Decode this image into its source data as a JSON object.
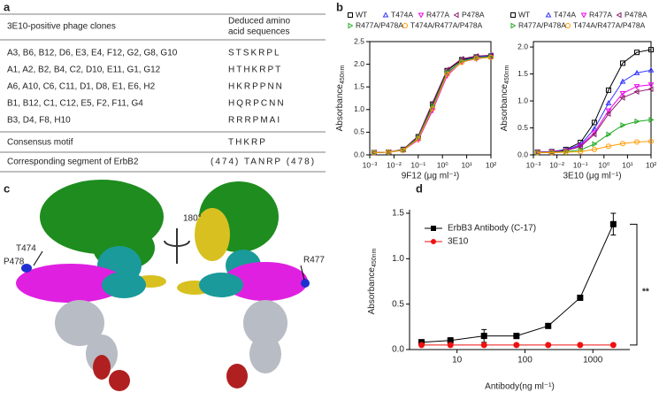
{
  "panel_labels": [
    "a",
    "b",
    "c",
    "d"
  ],
  "table": {
    "header": [
      "3E10-positive phage clones",
      [
        "Deduced amino",
        "acid sequences"
      ]
    ],
    "rows": [
      [
        "A3, B6, B12, D6, E3, E4, F12, G2, G8, G10",
        "STSKRPL"
      ],
      [
        "A1, A2, B2, B4, C2, D10, E11, G1, G12",
        "HTHKRPT"
      ],
      [
        "A6, A10, C6, C11, D1, D8, E1, E6, H2",
        "HKRPPNN"
      ],
      [
        "B1, B12, C1, C12, E5, F2, F11, G4",
        "HQRPCNN"
      ],
      [
        "B3, D4, F8, H10",
        "RRRPMAI"
      ],
      [
        "Consensus motif",
        "THKRP"
      ],
      [
        "Corresponding segment of ErbB2",
        "(474) TANRP (478)"
      ]
    ]
  },
  "structure": {
    "labels": [
      "T474",
      "P478",
      "180°",
      "R477"
    ]
  },
  "chart_data": [
    {
      "type": "line",
      "xscale": "log",
      "xlabel": "9F12 (μg ml⁻¹)",
      "ylabel": "Absorbance",
      "ylabel_sub": "450nm",
      "xlim": [
        0.001,
        100
      ],
      "ylim": [
        0,
        2.5
      ],
      "xticks": [
        {
          "value": 0.001,
          "label": "10⁻³"
        },
        {
          "value": 0.01,
          "label": "10⁻²"
        },
        {
          "value": 0.1,
          "label": "10⁻¹"
        },
        {
          "value": 1,
          "label": "10⁰"
        },
        {
          "value": 10,
          "label": "10¹"
        },
        {
          "value": 100,
          "label": "10²"
        }
      ],
      "yticks": [
        {
          "value": 0,
          "label": "0.0"
        },
        0.5,
        {
          "value": 1,
          "label": "1.0"
        },
        1.5,
        {
          "value": 2,
          "label": "2.0"
        },
        2.5
      ],
      "x": [
        0.0015,
        0.006,
        0.024,
        0.1,
        0.39,
        1.56,
        6.25,
        25,
        100
      ],
      "series": [
        {
          "name": "WT",
          "color": "#000000",
          "marker": "square",
          "values": [
            0.05,
            0.06,
            0.12,
            0.4,
            1.12,
            1.86,
            2.1,
            2.16,
            2.18
          ]
        },
        {
          "name": "T474A",
          "color": "#3333ff",
          "marker": "tri-up",
          "values": [
            0.05,
            0.06,
            0.11,
            0.36,
            1.05,
            1.8,
            2.08,
            2.15,
            2.2
          ]
        },
        {
          "name": "R477A",
          "color": "#ee00ee",
          "marker": "tri-down",
          "values": [
            0.05,
            0.06,
            0.1,
            0.33,
            0.98,
            1.75,
            2.05,
            2.12,
            2.16
          ]
        },
        {
          "name": "P478A",
          "color": "#8b1a6b",
          "marker": "tri-left",
          "values": [
            0.05,
            0.06,
            0.12,
            0.42,
            1.15,
            1.88,
            2.12,
            2.18,
            2.2
          ]
        },
        {
          "name": "R477A/P478A",
          "color": "#22aa22",
          "marker": "tri-right",
          "values": [
            0.05,
            0.06,
            0.11,
            0.38,
            1.08,
            1.82,
            2.07,
            2.14,
            2.17
          ]
        },
        {
          "name": "T474A/R477A/P478A",
          "color": "#ff9900",
          "marker": "circle",
          "values": [
            0.05,
            0.06,
            0.1,
            0.35,
            1.02,
            1.78,
            2.04,
            2.13,
            2.15
          ]
        }
      ]
    },
    {
      "type": "line",
      "xscale": "log",
      "xlabel": "3E10 (μg ml⁻¹)",
      "ylabel": "Absorbance",
      "ylabel_sub": "450nm",
      "xlim": [
        0.001,
        100
      ],
      "ylim": [
        0,
        2.1
      ],
      "xticks": [
        {
          "value": 0.001,
          "label": "10⁻³"
        },
        {
          "value": 0.01,
          "label": "10⁻²"
        },
        {
          "value": 0.1,
          "label": "10⁻¹"
        },
        {
          "value": 1,
          "label": "10⁰"
        },
        {
          "value": 10,
          "label": "10¹"
        },
        {
          "value": 100,
          "label": "10²"
        }
      ],
      "yticks": [
        {
          "value": 0,
          "label": "0.0"
        },
        0.5,
        {
          "value": 1,
          "label": "1.0"
        },
        1.5,
        {
          "value": 2,
          "label": "2.0"
        }
      ],
      "x": [
        0.0015,
        0.006,
        0.024,
        0.1,
        0.39,
        1.56,
        6.25,
        25,
        100
      ],
      "series": [
        {
          "name": "WT",
          "color": "#000000",
          "marker": "square",
          "values": [
            0.05,
            0.06,
            0.1,
            0.23,
            0.6,
            1.2,
            1.7,
            1.9,
            1.95
          ]
        },
        {
          "name": "T474A",
          "color": "#3333ff",
          "marker": "tri-up",
          "values": [
            0.05,
            0.06,
            0.09,
            0.19,
            0.48,
            0.96,
            1.36,
            1.52,
            1.57
          ]
        },
        {
          "name": "R477A",
          "color": "#ee00ee",
          "marker": "tri-down",
          "values": [
            0.05,
            0.06,
            0.08,
            0.17,
            0.41,
            0.82,
            1.14,
            1.27,
            1.3
          ]
        },
        {
          "name": "P478A",
          "color": "#8b1a6b",
          "marker": "tri-left",
          "values": [
            0.05,
            0.05,
            0.08,
            0.15,
            0.38,
            0.76,
            1.06,
            1.17,
            1.22
          ]
        },
        {
          "name": "R477A/P478A",
          "color": "#22aa22",
          "marker": "tri-right",
          "values": [
            0.04,
            0.05,
            0.06,
            0.09,
            0.2,
            0.38,
            0.55,
            0.62,
            0.65
          ]
        },
        {
          "name": "T474A/R477A/P478A",
          "color": "#ff9900",
          "marker": "circle",
          "values": [
            0.04,
            0.04,
            0.05,
            0.06,
            0.1,
            0.16,
            0.21,
            0.24,
            0.25
          ]
        }
      ]
    },
    {
      "type": "line",
      "xscale": "log",
      "xlabel": "Antibody(ng ml⁻¹)",
      "ylabel": "Absorbance",
      "ylabel_sub": "450nm",
      "xlim": [
        2,
        3500
      ],
      "ylim": [
        0,
        1.5
      ],
      "xticks": [
        10,
        100,
        1000
      ],
      "yticks": [
        {
          "value": 0,
          "label": "0.0"
        },
        0.5,
        {
          "value": 1,
          "label": "1.0"
        },
        1.5
      ],
      "x": [
        3,
        8,
        25,
        75,
        220,
        650,
        2000
      ],
      "annotation": "**",
      "series": [
        {
          "name": "ErbB3 Antibody (C-17)",
          "color": "#000000",
          "marker": "square",
          "filled": true,
          "values": [
            0.08,
            0.1,
            0.15,
            0.15,
            0.26,
            0.57,
            1.38
          ],
          "errors": [
            0.03,
            0.03,
            0.07,
            0.03,
            0.02,
            0.02,
            0.12
          ]
        },
        {
          "name": "3E10",
          "color": "#ee1111",
          "marker": "circle",
          "filled": true,
          "values": [
            0.05,
            0.05,
            0.05,
            0.05,
            0.05,
            0.05,
            0.05
          ],
          "errors": [
            0.01,
            0.01,
            0.01,
            0.01,
            0.01,
            0.01,
            0.01
          ]
        }
      ]
    }
  ]
}
